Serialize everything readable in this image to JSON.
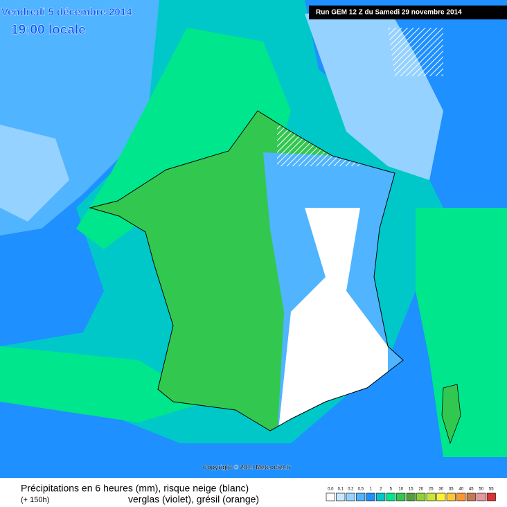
{
  "header": {
    "date": "Vendredi 5 décembre 2014",
    "time": "19:00 locale",
    "run": "Run GEM 12 Z du Samedi 29 novembre 2014"
  },
  "copyright": "Copyright © 2014 Meteociel.fr",
  "caption": {
    "line1": "Précipitations en 6 heures (mm), risque neige (blanc)",
    "lead": "(+ 150h)",
    "line2": "verglas (violet), grésil (orange)"
  },
  "legend": {
    "items": [
      {
        "label": "0.0",
        "color": "#ffffff"
      },
      {
        "label": "0.1",
        "color": "#c8e6ff"
      },
      {
        "label": "0.2",
        "color": "#96d2ff"
      },
      {
        "label": "0.5",
        "color": "#50b4ff"
      },
      {
        "label": "1",
        "color": "#1e90ff"
      },
      {
        "label": "2",
        "color": "#00c8c8"
      },
      {
        "label": "5",
        "color": "#00e68c"
      },
      {
        "label": "10",
        "color": "#32c850"
      },
      {
        "label": "15",
        "color": "#50a03c"
      },
      {
        "label": "20",
        "color": "#8cd232"
      },
      {
        "label": "25",
        "color": "#c8e632"
      },
      {
        "label": "30",
        "color": "#fff032"
      },
      {
        "label": "35",
        "color": "#ffc832"
      },
      {
        "label": "40",
        "color": "#ff9632"
      },
      {
        "label": "45",
        "color": "#c87850"
      },
      {
        "label": "50",
        "color": "#e696a0"
      },
      {
        "label": "55",
        "color": "#dc3232"
      }
    ]
  }
}
